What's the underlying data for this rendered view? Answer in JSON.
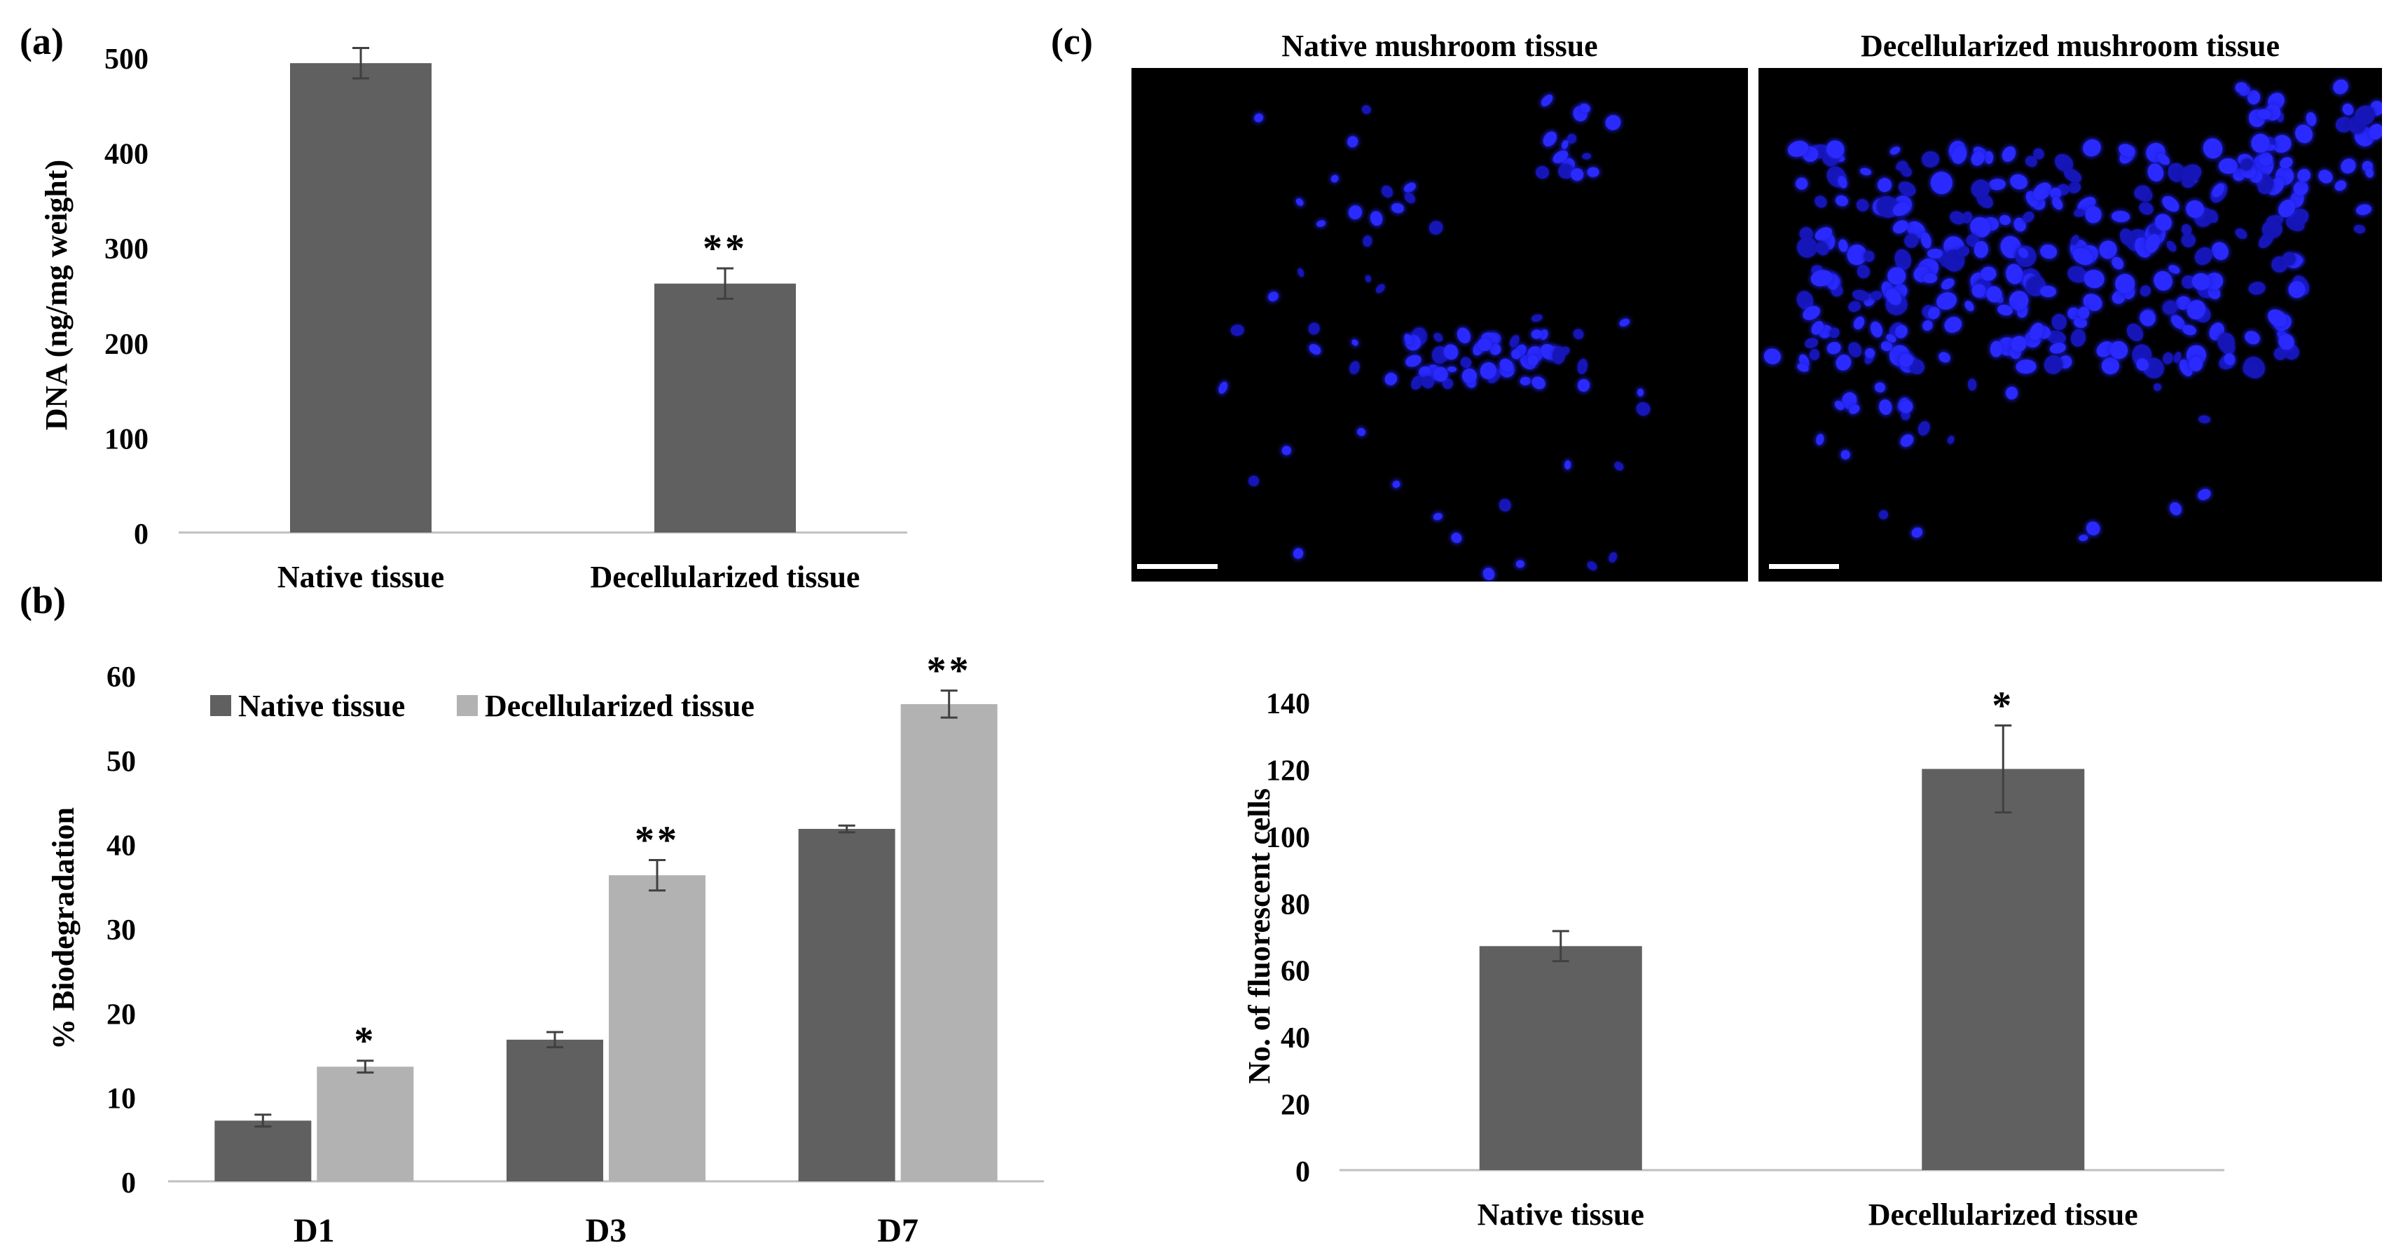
{
  "panels": {
    "a": {
      "label": "(a)"
    },
    "b": {
      "label": "(b)"
    },
    "c": {
      "label": "(c)",
      "image_left_title": "Native mushroom tissue",
      "image_right_title": "Decellularized  mushroom tissue"
    }
  },
  "colors": {
    "native": "#606060",
    "decellularized": "#b2b2b2",
    "nuclei": "#2a2aff",
    "image_background": "#000000"
  },
  "chart_data": [
    {
      "id": "a",
      "type": "bar",
      "title": "",
      "xlabel": "",
      "ylabel": "DNA (ng/mg weight)",
      "categories": [
        "Native tissue",
        "Decellularized tissue"
      ],
      "values": [
        494,
        262
      ],
      "errors": [
        16,
        16
      ],
      "annotations": [
        "",
        "**"
      ],
      "ylim": [
        0,
        500
      ],
      "yticks": [
        0,
        100,
        200,
        300,
        400,
        500
      ],
      "grid": false
    },
    {
      "id": "b",
      "type": "bar",
      "title": "",
      "xlabel": "",
      "ylabel": "% Biodegradation",
      "categories": [
        "D1",
        "D3",
        "D7"
      ],
      "series": [
        {
          "name": "Native tissue",
          "values": [
            7.2,
            16.8,
            41.8
          ],
          "errors": [
            0.7,
            0.9,
            0.4
          ],
          "annotations": [
            "",
            "",
            ""
          ]
        },
        {
          "name": "Decellularized tissue",
          "values": [
            13.6,
            36.3,
            56.6
          ],
          "errors": [
            0.7,
            1.8,
            1.6
          ],
          "annotations": [
            "*",
            "**",
            "**"
          ]
        }
      ],
      "ylim": [
        0,
        60
      ],
      "yticks": [
        0,
        10,
        20,
        30,
        40,
        50,
        60
      ],
      "legend": "top-left",
      "grid": false
    },
    {
      "id": "c",
      "type": "bar",
      "title": "",
      "xlabel": "",
      "ylabel": "No. of fluorescent cells",
      "categories": [
        "Native tissue",
        "Decellularized tissue"
      ],
      "values": [
        67,
        120
      ],
      "errors": [
        4.5,
        13
      ],
      "annotations": [
        "",
        "*"
      ],
      "ylim": [
        0,
        140
      ],
      "yticks": [
        0,
        20,
        40,
        60,
        80,
        100,
        120,
        140
      ],
      "grid": false
    }
  ]
}
